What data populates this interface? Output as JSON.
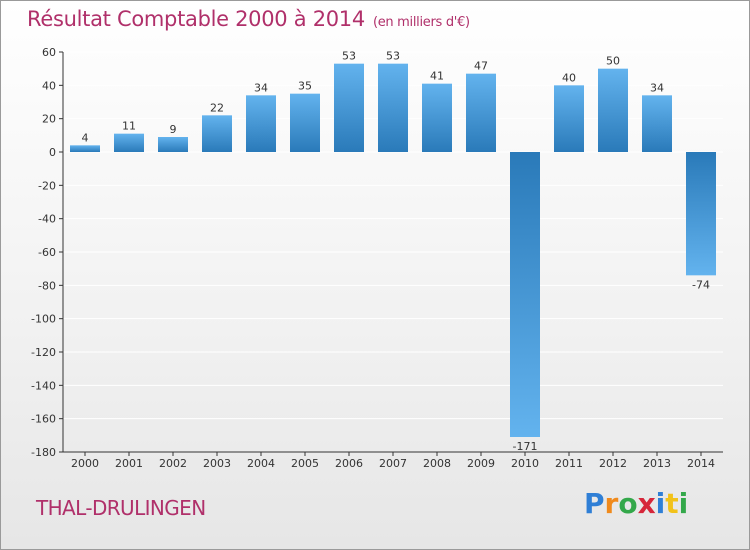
{
  "title": "Résultat Comptable 2000 à 2014",
  "subtitle": "(en milliers d'€)",
  "place": "THAL-DRULINGEN",
  "logo": {
    "text": "Proxiti",
    "letters": [
      {
        "ch": "P",
        "color": "#2f7fd6"
      },
      {
        "ch": "r",
        "color": "#f08a1c"
      },
      {
        "ch": "o",
        "color": "#33a84a"
      },
      {
        "ch": "x",
        "color": "#d6263a"
      },
      {
        "ch": "i",
        "color": "#2f7fd6"
      },
      {
        "ch": "t",
        "color": "#f2c21a"
      },
      {
        "ch": "i",
        "color": "#33a84a"
      }
    ]
  },
  "colors": {
    "title": "#b0306a",
    "bar_top": "#63b3ee",
    "bar_bottom": "#2a7ab9",
    "grid": "#ffffff",
    "axis": "#333333",
    "text": "#333333"
  },
  "chart_data": {
    "type": "bar",
    "categories": [
      "2000",
      "2001",
      "2002",
      "2003",
      "2004",
      "2005",
      "2006",
      "2007",
      "2008",
      "2009",
      "2010",
      "2011",
      "2012",
      "2013",
      "2014"
    ],
    "values": [
      4,
      11,
      9,
      22,
      34,
      35,
      53,
      53,
      41,
      47,
      -171,
      40,
      50,
      34,
      -74
    ],
    "labels": [
      "4",
      "11",
      "9",
      "22",
      "34",
      "35",
      "53",
      "53",
      "41",
      "47",
      "-171",
      "40",
      "50",
      "34",
      "-74"
    ],
    "ylim": [
      -180,
      60
    ],
    "yticks": [
      60,
      40,
      20,
      0,
      -20,
      -40,
      -60,
      -80,
      -100,
      -120,
      -140,
      -160,
      -180
    ],
    "ytick_labels": [
      "60",
      "40",
      "20",
      "0",
      "-20",
      "-40",
      "-60",
      "-80",
      "-100",
      "-120",
      "-140",
      "-160",
      "-180"
    ],
    "grid": true,
    "legend": "none"
  }
}
